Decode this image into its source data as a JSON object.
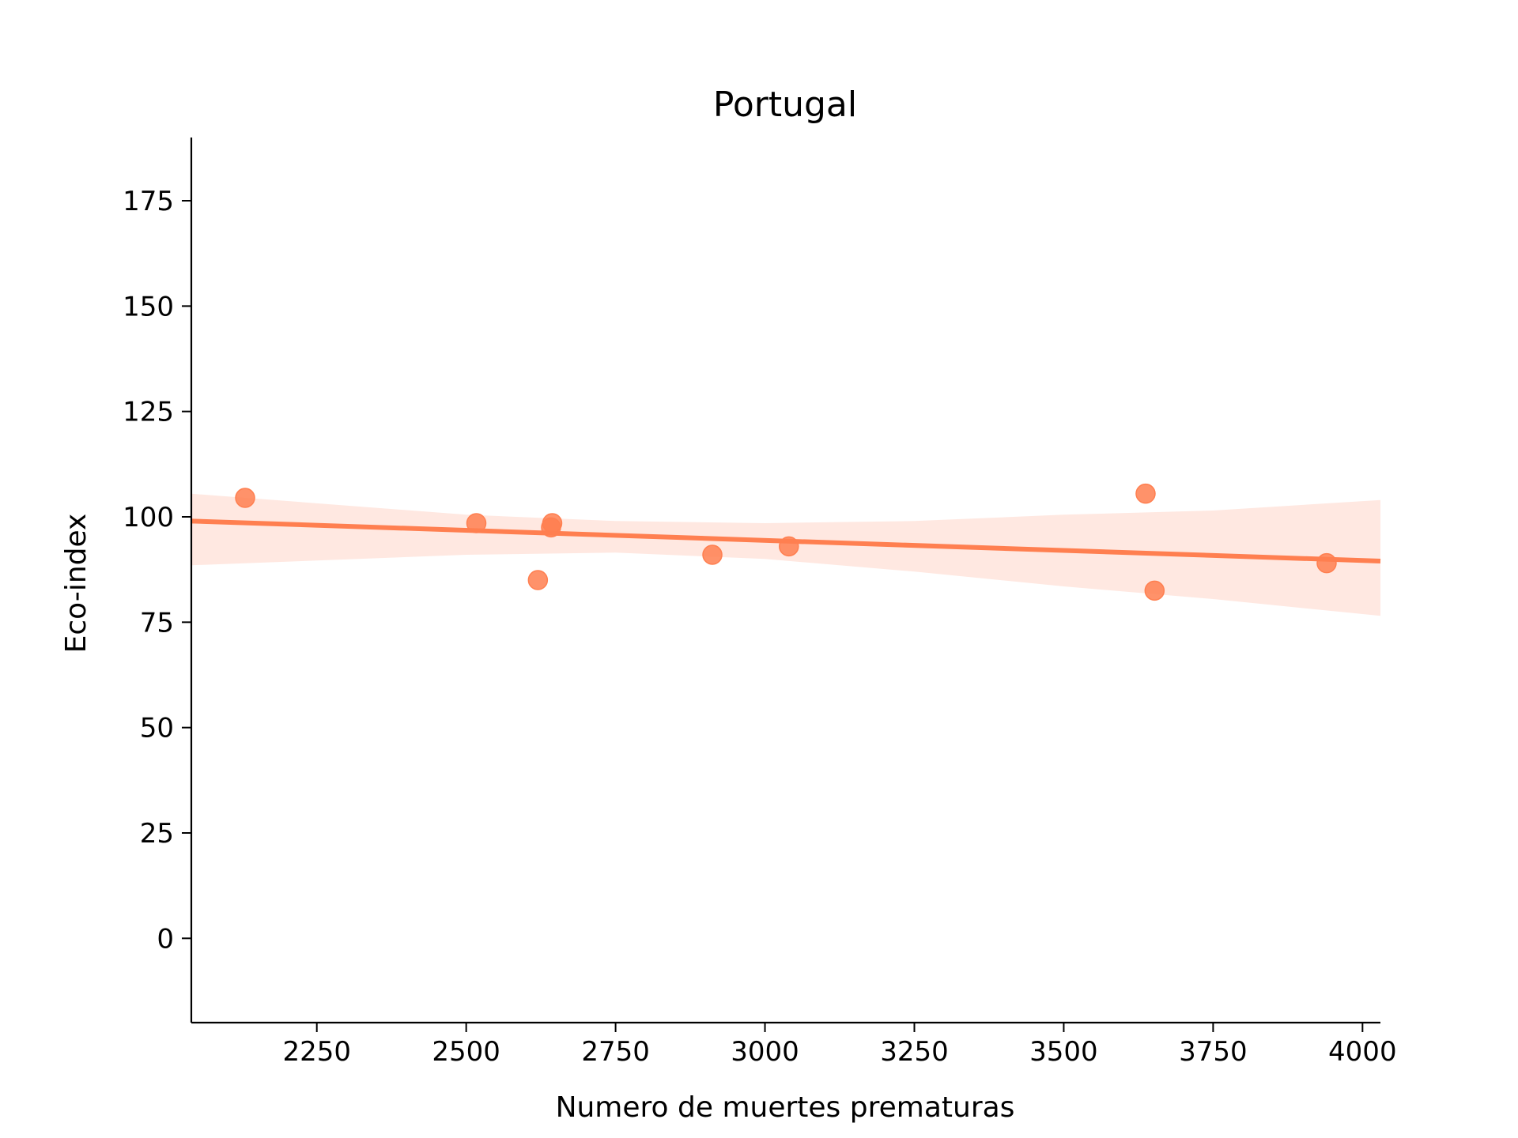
{
  "chart_data": {
    "type": "scatter",
    "title": "Portugal",
    "xlabel": "Numero de muertes prematuras",
    "ylabel": "Eco-index",
    "xlim": [
      2040,
      4030
    ],
    "ylim": [
      -20,
      190
    ],
    "xticks": [
      2250,
      2500,
      2750,
      3000,
      3250,
      3500,
      3750,
      4000
    ],
    "yticks": [
      0,
      25,
      50,
      75,
      100,
      125,
      150,
      175
    ],
    "grid": false,
    "legend": "none",
    "colors": {
      "point": "#ff7f50",
      "line": "#ff7f50",
      "band": "#ffe4dc"
    },
    "points": [
      {
        "x": 2130,
        "y": 104.5
      },
      {
        "x": 2517,
        "y": 98.5
      },
      {
        "x": 2620,
        "y": 85.0
      },
      {
        "x": 2642,
        "y": 97.5
      },
      {
        "x": 2644,
        "y": 98.5
      },
      {
        "x": 2912,
        "y": 91.0
      },
      {
        "x": 3040,
        "y": 93.0
      },
      {
        "x": 3637,
        "y": 105.5
      },
      {
        "x": 3652,
        "y": 82.5
      },
      {
        "x": 3940,
        "y": 89.0
      }
    ],
    "regression": {
      "x": [
        2040,
        4030
      ],
      "y": [
        99.0,
        89.5
      ]
    },
    "confidence_band": {
      "x": [
        2040,
        2500,
        2750,
        3000,
        3250,
        3500,
        3750,
        4030
      ],
      "upper": [
        105.5,
        100.5,
        99.0,
        98.5,
        99.0,
        100.5,
        101.5,
        104.0
      ],
      "lower": [
        88.5,
        91.0,
        91.5,
        90.0,
        87.0,
        83.5,
        80.5,
        76.5
      ]
    }
  }
}
